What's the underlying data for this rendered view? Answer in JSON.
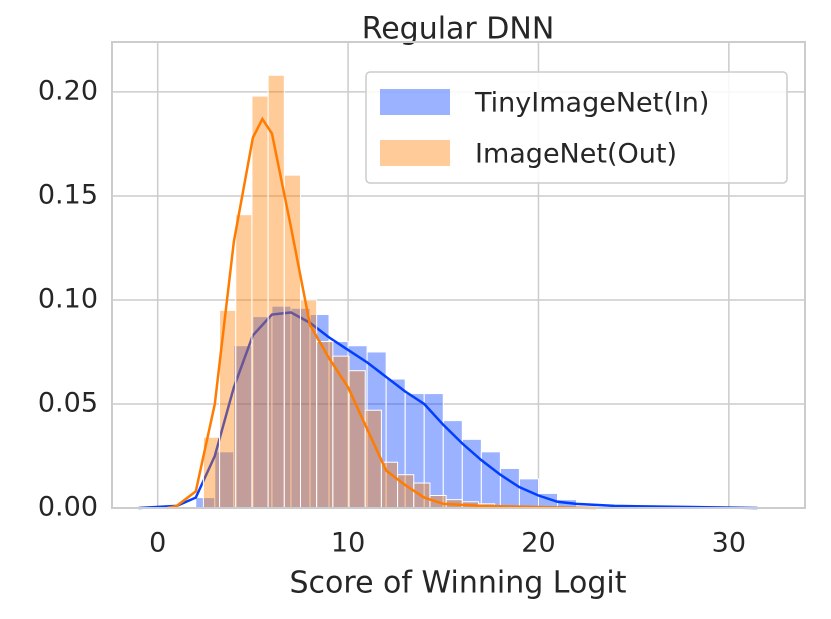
{
  "chart_data": {
    "type": "histogram",
    "title": "Regular DNN",
    "x_label": "Score of Winning Logit",
    "xlim": [
      -2.4,
      34.0
    ],
    "ylim": [
      0,
      0.224
    ],
    "xticks": [
      0,
      10,
      20,
      30
    ],
    "yticks": [
      {
        "value": 0,
        "label": "0.00"
      },
      {
        "value": 0.05,
        "label": "0.05"
      },
      {
        "value": 0.1,
        "label": "0.10"
      },
      {
        "value": 0.15,
        "label": "0.15"
      },
      {
        "value": 0.2,
        "label": "0.20"
      }
    ],
    "grid": true,
    "legend": "upper right",
    "series": [
      {
        "name": "TinyImageNet(In)",
        "color": "#023eff",
        "bins": [
          2,
          3,
          4,
          5,
          6,
          7,
          8,
          9,
          10,
          11,
          12,
          13,
          14,
          15,
          16,
          17,
          18,
          19,
          20,
          21,
          22
        ],
        "values": [
          0.005,
          0.027,
          0.078,
          0.092,
          0.097,
          0.096,
          0.093,
          0.08,
          0.078,
          0.075,
          0.062,
          0.055,
          0.055,
          0.042,
          0.033,
          0.027,
          0.019,
          0.014,
          0.007,
          0.004
        ],
        "kde": {
          "x": [
            -1,
            1,
            2,
            3,
            4,
            5,
            6,
            7,
            8,
            9,
            10,
            11,
            12,
            13,
            14,
            15,
            16,
            17,
            18,
            19,
            20,
            21,
            22,
            24,
            28,
            31.5
          ],
          "y": [
            0,
            0.001,
            0.005,
            0.025,
            0.058,
            0.083,
            0.093,
            0.094,
            0.089,
            0.082,
            0.076,
            0.07,
            0.063,
            0.056,
            0.05,
            0.04,
            0.031,
            0.023,
            0.016,
            0.01,
            0.006,
            0.003,
            0.002,
            0.001,
            0.0005,
            0
          ]
        }
      },
      {
        "name": "ImageNet(Out)",
        "color": "#ff7c00",
        "bins": [
          2.4,
          3.25,
          4.1,
          4.95,
          5.8,
          6.65,
          7.5,
          8.35,
          9.2,
          10.05,
          10.9,
          11.75,
          12.6,
          13.45,
          14.3,
          15.15,
          16.0,
          16.85,
          17.7,
          18.55
        ],
        "values": [
          0.034,
          0.095,
          0.141,
          0.198,
          0.208,
          0.16,
          0.1,
          0.08,
          0.073,
          0.066,
          0.047,
          0.022,
          0.016,
          0.012,
          0.006,
          0.004,
          0.003,
          0.002,
          0.001
        ],
        "kde": {
          "x": [
            0.5,
            1,
            2,
            3,
            4,
            5,
            5.5,
            6,
            7,
            8,
            9,
            10,
            11,
            12,
            13,
            14,
            15,
            17,
            20,
            23
          ],
          "y": [
            0,
            0.001,
            0.008,
            0.05,
            0.128,
            0.178,
            0.187,
            0.18,
            0.135,
            0.088,
            0.072,
            0.058,
            0.038,
            0.018,
            0.011,
            0.005,
            0.002,
            0.001,
            0.0005,
            0
          ]
        }
      }
    ]
  }
}
